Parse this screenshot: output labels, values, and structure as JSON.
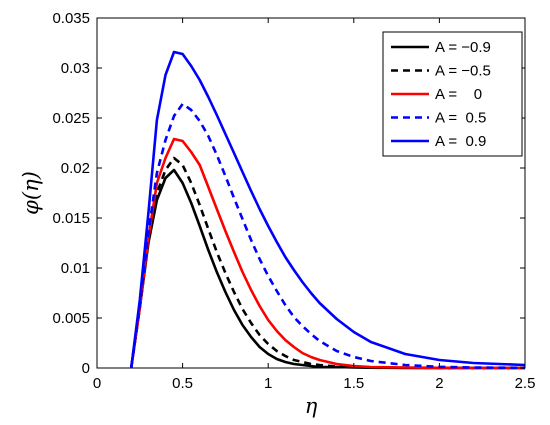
{
  "chart_data": {
    "type": "line",
    "title": "",
    "xlabel": "η",
    "ylabel": "φ(η)",
    "xlim": [
      0,
      2.5
    ],
    "ylim": [
      0,
      0.035
    ],
    "xticks": [
      0,
      0.5,
      1,
      1.5,
      2,
      2.5
    ],
    "xtick_labels": [
      "0",
      "0.5",
      "1",
      "1.5",
      "2",
      "2.5"
    ],
    "yticks": [
      0,
      0.005,
      0.01,
      0.015,
      0.02,
      0.025,
      0.03,
      0.035
    ],
    "ytick_labels": [
      "0",
      "0.005",
      "0.01",
      "0.015",
      "0.02",
      "0.025",
      "0.03",
      "0.035"
    ],
    "grid": false,
    "legend_position": "top-right",
    "series": [
      {
        "name": "A = −0.9",
        "color": "#000000",
        "dash": "solid",
        "x": [
          0.2,
          0.25,
          0.3,
          0.35,
          0.4,
          0.45,
          0.5,
          0.55,
          0.6,
          0.65,
          0.7,
          0.75,
          0.8,
          0.85,
          0.9,
          0.95,
          1.0,
          1.05,
          1.1,
          1.15,
          1.2,
          1.25,
          1.3,
          1.4,
          1.5,
          1.6,
          1.8,
          2.0,
          2.2,
          2.5
        ],
        "y": [
          0,
          0.006,
          0.0125,
          0.0168,
          0.019,
          0.0198,
          0.0185,
          0.0165,
          0.0142,
          0.0118,
          0.0096,
          0.0076,
          0.0058,
          0.0043,
          0.0031,
          0.0021,
          0.0014,
          0.0009,
          0.0006,
          0.0004,
          0.0003,
          0.0002,
          0.0001,
          0.0001,
          5e-05,
          3e-05,
          1e-05,
          0,
          0,
          0
        ]
      },
      {
        "name": "A = −0.5",
        "color": "#000000",
        "dash": "dashed",
        "x": [
          0.2,
          0.25,
          0.3,
          0.35,
          0.4,
          0.45,
          0.5,
          0.55,
          0.6,
          0.65,
          0.7,
          0.75,
          0.8,
          0.85,
          0.9,
          0.95,
          1.0,
          1.05,
          1.1,
          1.15,
          1.2,
          1.25,
          1.3,
          1.4,
          1.5,
          1.6,
          1.8,
          2.0,
          2.2,
          2.5
        ],
        "y": [
          0,
          0.006,
          0.0128,
          0.0175,
          0.0198,
          0.021,
          0.0203,
          0.0185,
          0.0163,
          0.0139,
          0.0116,
          0.0095,
          0.0076,
          0.0059,
          0.0045,
          0.0033,
          0.0024,
          0.0017,
          0.0012,
          0.0008,
          0.0006,
          0.0004,
          0.0003,
          0.00015,
          0.0001,
          6e-05,
          3e-05,
          1e-05,
          0,
          0
        ]
      },
      {
        "name": "A =    0",
        "color": "#ff0000",
        "dash": "solid",
        "x": [
          0.2,
          0.25,
          0.3,
          0.35,
          0.4,
          0.45,
          0.5,
          0.55,
          0.6,
          0.65,
          0.7,
          0.75,
          0.8,
          0.85,
          0.9,
          0.95,
          1.0,
          1.05,
          1.1,
          1.15,
          1.2,
          1.25,
          1.3,
          1.4,
          1.5,
          1.6,
          1.8,
          2.0,
          2.2,
          2.5
        ],
        "y": [
          0,
          0.006,
          0.013,
          0.0185,
          0.021,
          0.0229,
          0.0227,
          0.0216,
          0.0203,
          0.0181,
          0.0159,
          0.0137,
          0.0116,
          0.0096,
          0.0078,
          0.0062,
          0.0048,
          0.0037,
          0.0028,
          0.0021,
          0.0015,
          0.0011,
          0.0008,
          0.0004,
          0.0002,
          0.0001,
          5e-05,
          2e-05,
          1e-05,
          0
        ]
      },
      {
        "name": "A =  0.5",
        "color": "#0000ff",
        "dash": "dashed",
        "x": [
          0.2,
          0.25,
          0.3,
          0.35,
          0.4,
          0.45,
          0.5,
          0.55,
          0.6,
          0.65,
          0.7,
          0.75,
          0.8,
          0.85,
          0.9,
          0.95,
          1.0,
          1.05,
          1.1,
          1.15,
          1.2,
          1.25,
          1.3,
          1.4,
          1.5,
          1.6,
          1.8,
          2.0,
          2.2,
          2.5
        ],
        "y": [
          0,
          0.0063,
          0.0135,
          0.0195,
          0.0228,
          0.0252,
          0.0264,
          0.0258,
          0.0247,
          0.0232,
          0.0213,
          0.0192,
          0.017,
          0.0149,
          0.0128,
          0.0109,
          0.0092,
          0.0077,
          0.0063,
          0.0051,
          0.0042,
          0.0034,
          0.0027,
          0.0017,
          0.0011,
          0.0007,
          0.0003,
          0.00012,
          5e-05,
          2e-05
        ]
      },
      {
        "name": "A =  0.9",
        "color": "#0000ff",
        "dash": "solid",
        "x": [
          0.2,
          0.25,
          0.3,
          0.35,
          0.4,
          0.45,
          0.5,
          0.55,
          0.6,
          0.65,
          0.7,
          0.75,
          0.8,
          0.85,
          0.9,
          0.95,
          1.0,
          1.05,
          1.1,
          1.15,
          1.2,
          1.25,
          1.3,
          1.4,
          1.5,
          1.6,
          1.8,
          2.0,
          2.2,
          2.5
        ],
        "y": [
          0,
          0.0068,
          0.0155,
          0.0248,
          0.0293,
          0.0316,
          0.0314,
          0.0302,
          0.0288,
          0.0271,
          0.0253,
          0.0234,
          0.0215,
          0.0196,
          0.0177,
          0.0159,
          0.0142,
          0.0126,
          0.0111,
          0.0098,
          0.0086,
          0.0075,
          0.0065,
          0.0049,
          0.0036,
          0.0026,
          0.0014,
          0.0008,
          0.0005,
          0.0003
        ]
      }
    ]
  }
}
